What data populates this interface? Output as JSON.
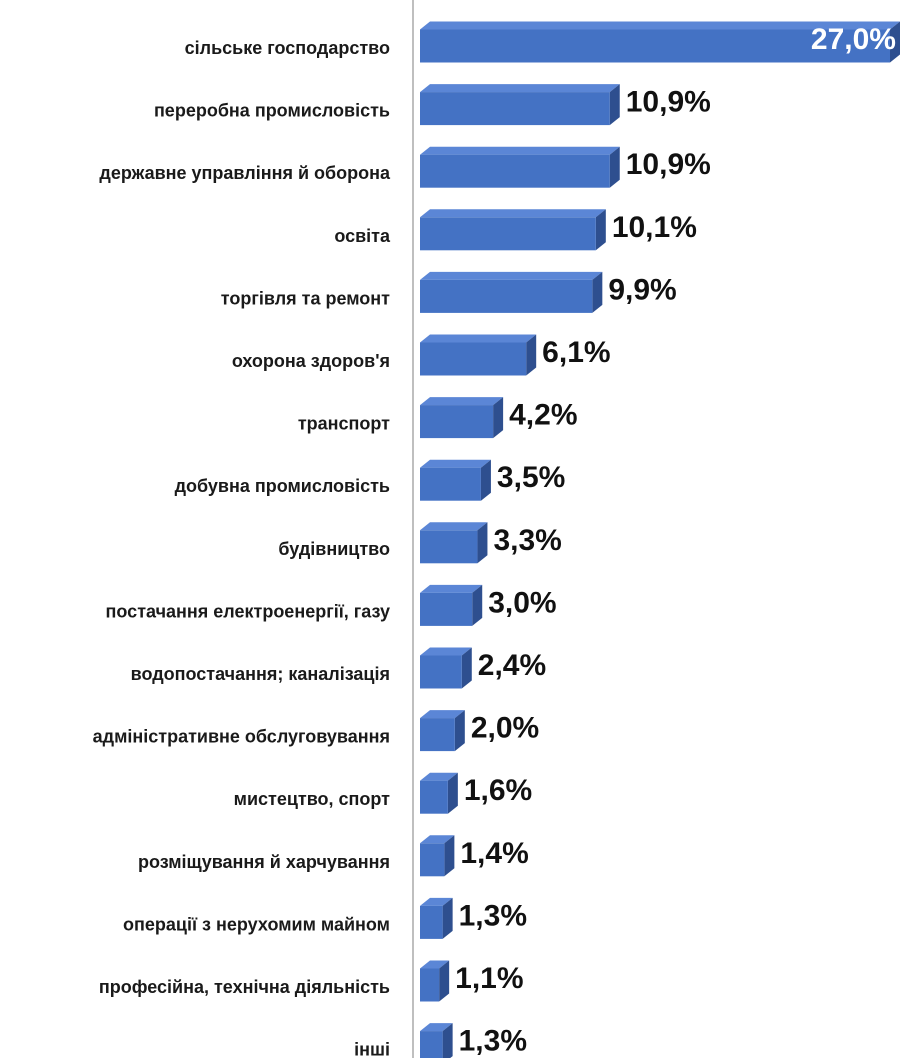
{
  "chart_data": {
    "type": "bar",
    "orientation": "horizontal",
    "style": "3d",
    "categories": [
      "сільське господарство",
      "переробна промисловість",
      "державне управління й оборона",
      "освіта",
      "торгівля та ремонт",
      "охорона здоров'я",
      "транспорт",
      "добувна промисловість",
      "будівництво",
      "постачання електроенергії, газу",
      "водопостачання; каналізація",
      "адміністративне обслуговування",
      "мистецтво, спорт",
      "розміщування й харчування",
      "операції з нерухомим майном",
      "професійна, технічна діяльність",
      "інші"
    ],
    "values": [
      27.0,
      10.9,
      10.9,
      10.1,
      9.9,
      6.1,
      4.2,
      3.5,
      3.3,
      3.0,
      2.4,
      2.0,
      1.6,
      1.4,
      1.3,
      1.1,
      1.3
    ],
    "value_labels": [
      "27,0%",
      "10,9%",
      "10,9%",
      "10,1%",
      "9,9%",
      "6,1%",
      "4,2%",
      "3,5%",
      "3,3%",
      "3,0%",
      "2,4%",
      "2,0%",
      "1,6%",
      "1,4%",
      "1,3%",
      "1,1%",
      "1,3%"
    ],
    "unit": "%",
    "xlim": [
      0,
      27.0
    ],
    "grid": false,
    "legend": "none",
    "colors": {
      "bar_front": "#4472C4",
      "bar_top": "#5B86D6",
      "bar_side": "#2E4F8F",
      "axis": "#BFBFBF",
      "label_text": "#1a1a1a",
      "inside_label": "#ffffff"
    }
  }
}
